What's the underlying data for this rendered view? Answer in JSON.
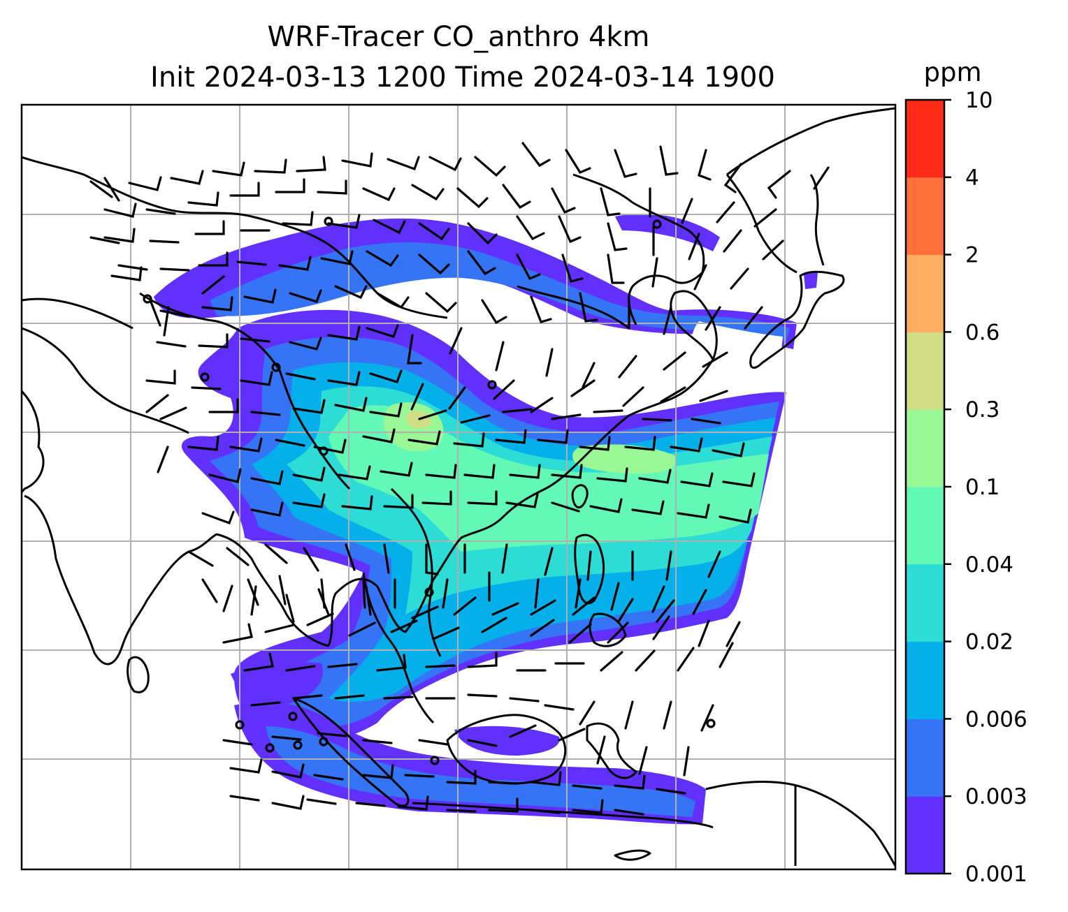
{
  "title": {
    "line1": "WRF-Tracer CO_anthro 4km",
    "line2": "Init 2024-03-13 1200 Time 2024-03-14 1900"
  },
  "colorbar": {
    "unit": "ppm",
    "levels": [
      "0.001",
      "0.003",
      "0.006",
      "0.02",
      "0.04",
      "0.1",
      "0.3",
      "0.6",
      "2",
      "4",
      "10"
    ],
    "colors": [
      "#6130fd",
      "#3574f5",
      "#05afe9",
      "#2ddcd5",
      "#63f8b6",
      "#99f796",
      "#d0dd84",
      "#feae62",
      "#fe6f3b",
      "#ff2a17"
    ]
  },
  "map": {
    "gridlines": true,
    "grid_color": "#b0b0b0",
    "coastline_color": "#000000",
    "wind_barb_color": "#000000"
  }
}
